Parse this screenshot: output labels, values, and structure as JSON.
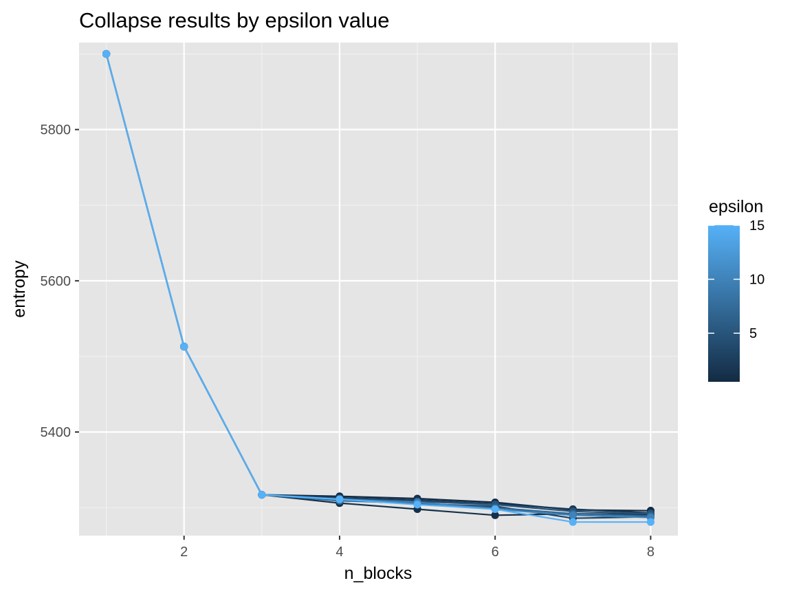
{
  "chart_data": {
    "type": "line",
    "title": "Collapse results by epsilon value",
    "xlabel": "n_blocks",
    "ylabel": "entropy",
    "xlim": [
      0.65,
      8.35
    ],
    "ylim": [
      5263,
      5915
    ],
    "x_ticks": [
      2,
      4,
      6,
      8
    ],
    "y_ticks": [
      5400,
      5600,
      5800
    ],
    "grid": true,
    "legend": {
      "title": "epsilon",
      "type": "colorbar",
      "position": "right",
      "range": [
        0.5,
        15
      ],
      "ticks": [
        5,
        10,
        15
      ],
      "low_color": "#132b43",
      "high_color": "#56b1f7"
    },
    "x": [
      1,
      2,
      3,
      4,
      5,
      6,
      7,
      8
    ],
    "series": [
      {
        "epsilon": 0.5,
        "values": [
          5900,
          5513,
          5317,
          5315,
          5312,
          5307,
          5297,
          5296
        ]
      },
      {
        "epsilon": 1,
        "values": [
          5900,
          5513,
          5317,
          5306,
          5298,
          5290,
          5292,
          5291
        ]
      },
      {
        "epsilon": 2,
        "values": [
          5900,
          5513,
          5317,
          5313,
          5310,
          5305,
          5298,
          5293
        ]
      },
      {
        "epsilon": 3,
        "values": [
          5900,
          5513,
          5317,
          5310,
          5305,
          5302,
          5286,
          5288
        ]
      },
      {
        "epsilon": 5,
        "values": [
          5900,
          5513,
          5317,
          5312,
          5308,
          5304,
          5295,
          5292
        ]
      },
      {
        "epsilon": 7,
        "values": [
          5900,
          5513,
          5317,
          5309,
          5306,
          5300,
          5292,
          5289
        ]
      },
      {
        "epsilon": 10,
        "values": [
          5900,
          5513,
          5317,
          5311,
          5307,
          5298,
          5290,
          5287
        ]
      },
      {
        "epsilon": 15,
        "values": [
          5900,
          5513,
          5317,
          5311,
          5304,
          5298,
          5281,
          5281
        ]
      }
    ]
  }
}
